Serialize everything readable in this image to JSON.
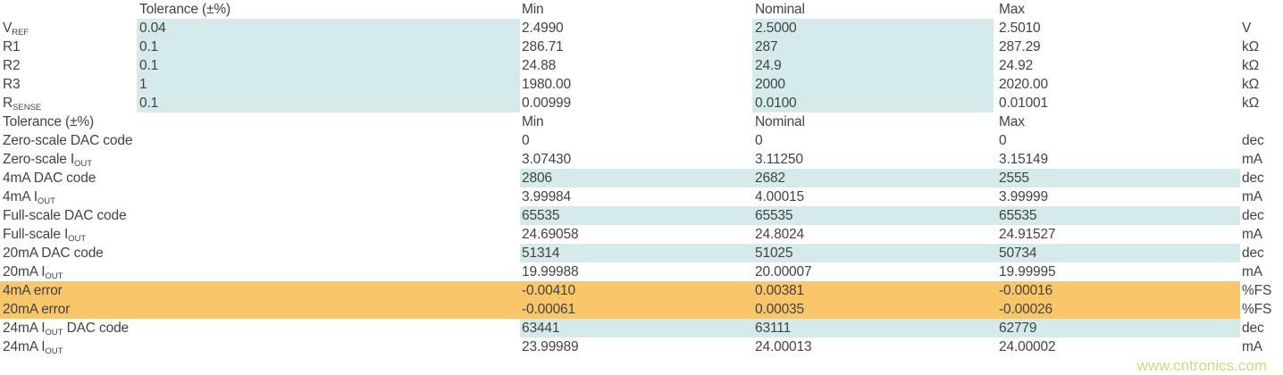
{
  "colors": {
    "highlight_teal": "#d5eaea",
    "highlight_orange": "#f9c76a",
    "text": "#404344",
    "watermark": "#cfda80"
  },
  "watermark": {
    "text": "www.cntronics.com"
  },
  "table": {
    "column_headers": [
      "Tolerance (±%)",
      "Min",
      "Nominal",
      "Max"
    ],
    "rows": [
      {
        "type": "header",
        "label_parts": [],
        "tolerance": "Tolerance (±%)",
        "min": "Min",
        "nominal": "Nominal",
        "max": "Max",
        "unit": "",
        "highlight": "none"
      },
      {
        "type": "data",
        "label_parts": [
          {
            "t": "V"
          },
          {
            "t": "REF",
            "sub": true
          }
        ],
        "tolerance": "0.04",
        "min": "2.4990",
        "nominal": "2.5000",
        "max": "2.5010",
        "unit": "V",
        "highlight": "params"
      },
      {
        "type": "data",
        "label_parts": [
          {
            "t": "R1"
          }
        ],
        "tolerance": "0.1",
        "min": "286.71",
        "nominal": "287",
        "max": "287.29",
        "unit": "kΩ",
        "highlight": "params"
      },
      {
        "type": "data",
        "label_parts": [
          {
            "t": "R2"
          }
        ],
        "tolerance": "0.1",
        "min": "24.88",
        "nominal": "24.9",
        "max": "24.92",
        "unit": "kΩ",
        "highlight": "params"
      },
      {
        "type": "data",
        "label_parts": [
          {
            "t": "R3"
          }
        ],
        "tolerance": "1",
        "min": "1980.00",
        "nominal": "2000",
        "max": "2020.00",
        "unit": "kΩ",
        "highlight": "params"
      },
      {
        "type": "data",
        "label_parts": [
          {
            "t": "R"
          },
          {
            "t": "SENSE",
            "sub": true
          }
        ],
        "tolerance": "0.1",
        "min": "0.00999",
        "nominal": "0.0100",
        "max": "0.01001",
        "unit": "kΩ",
        "highlight": "params"
      },
      {
        "type": "header",
        "label_parts": [
          {
            "t": "Tolerance (±%)"
          }
        ],
        "tolerance": "",
        "min": "Min",
        "nominal": "Nominal",
        "max": "Max",
        "unit": "",
        "highlight": "none"
      },
      {
        "type": "data",
        "label_parts": [
          {
            "t": "Zero-scale DAC code"
          }
        ],
        "tolerance": "",
        "min": "0",
        "nominal": "0",
        "max": "0",
        "unit": "dec",
        "highlight": "none"
      },
      {
        "type": "data",
        "label_parts": [
          {
            "t": "Zero-scale I"
          },
          {
            "t": "OUT",
            "sub": true
          }
        ],
        "tolerance": "",
        "min": "3.07430",
        "nominal": "3.11250",
        "max": "3.15149",
        "unit": "mA",
        "highlight": "none"
      },
      {
        "type": "data",
        "label_parts": [
          {
            "t": "4mA DAC code"
          }
        ],
        "tolerance": "",
        "min": "2806",
        "nominal": "2682",
        "max": "2555",
        "unit": "dec",
        "highlight": "values"
      },
      {
        "type": "data",
        "label_parts": [
          {
            "t": "4mA I"
          },
          {
            "t": "OUT",
            "sub": true
          }
        ],
        "tolerance": "",
        "min": "3.99984",
        "nominal": "4.00015",
        "max": "3.99999",
        "unit": "mA",
        "highlight": "none"
      },
      {
        "type": "data",
        "label_parts": [
          {
            "t": "Full-scale DAC code"
          }
        ],
        "tolerance": "",
        "min": "65535",
        "nominal": "65535",
        "max": "65535",
        "unit": "dec",
        "highlight": "values"
      },
      {
        "type": "data",
        "label_parts": [
          {
            "t": "Full-scale I"
          },
          {
            "t": "OUT",
            "sub": true
          }
        ],
        "tolerance": "",
        "min": "24.69058",
        "nominal": "24.8024",
        "max": "24.91527",
        "unit": "mA",
        "highlight": "none"
      },
      {
        "type": "data",
        "label_parts": [
          {
            "t": "20mA DAC code"
          }
        ],
        "tolerance": "",
        "min": "51314",
        "nominal": "51025",
        "max": "50734",
        "unit": "dec",
        "highlight": "values"
      },
      {
        "type": "data",
        "label_parts": [
          {
            "t": "20mA I"
          },
          {
            "t": "OUT",
            "sub": true
          }
        ],
        "tolerance": "",
        "min": "19.99988",
        "nominal": "20.00007",
        "max": "19.99995",
        "unit": "mA",
        "highlight": "none"
      },
      {
        "type": "data",
        "label_parts": [
          {
            "t": "4mA error"
          }
        ],
        "tolerance": "",
        "min": "-0.00410",
        "nominal": "0.00381",
        "max": "-0.00016",
        "unit": "%FS",
        "highlight": "error"
      },
      {
        "type": "data",
        "label_parts": [
          {
            "t": "20mA error"
          }
        ],
        "tolerance": "",
        "min": "-0.00061",
        "nominal": "0.00035",
        "max": "-0.00026",
        "unit": "%FS",
        "highlight": "error"
      },
      {
        "type": "data",
        "label_parts": [
          {
            "t": "24mA I"
          },
          {
            "t": "OUT",
            "sub": true
          },
          {
            "t": " DAC code"
          }
        ],
        "tolerance": "",
        "min": "63441",
        "nominal": "63111",
        "max": "62779",
        "unit": "dec",
        "highlight": "values"
      },
      {
        "type": "data",
        "label_parts": [
          {
            "t": "24mA I"
          },
          {
            "t": "OUT",
            "sub": true
          }
        ],
        "tolerance": "",
        "min": "23.99989",
        "nominal": "24.00013",
        "max": "24.00002",
        "unit": "mA",
        "highlight": "none"
      }
    ]
  }
}
